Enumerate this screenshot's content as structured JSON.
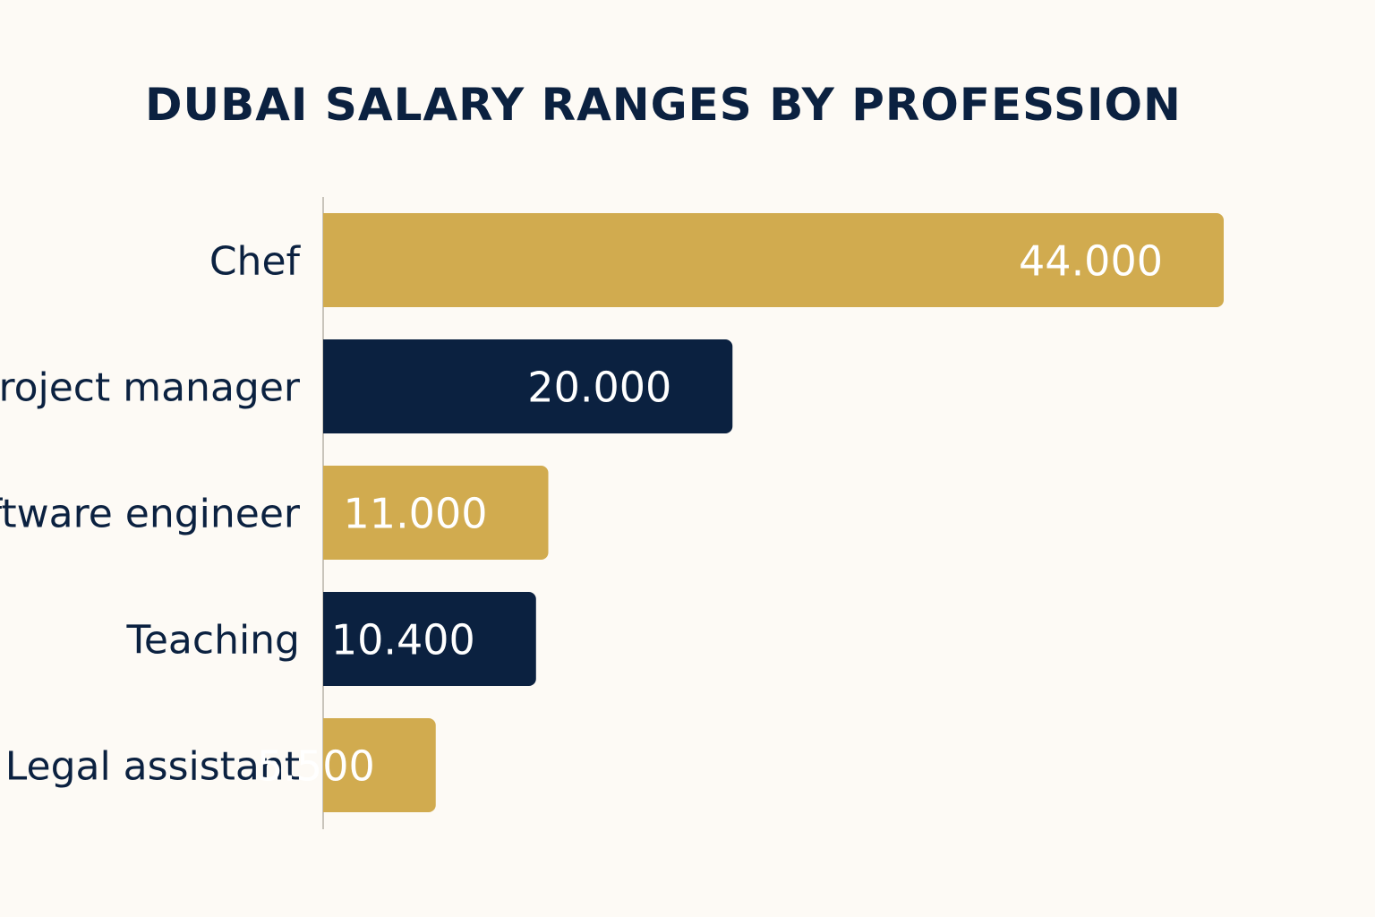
{
  "chart_data": {
    "type": "bar",
    "orientation": "horizontal",
    "title": "DUBAI SALARY RANGES BY PROFESSION",
    "categories": [
      "Chef",
      "Project manager",
      "Software engineer",
      "Teaching",
      "Legal assistant"
    ],
    "values": [
      44000,
      20000,
      11000,
      10400,
      5500
    ],
    "value_labels": [
      "44.000",
      "20.000",
      "11.000",
      "10.400",
      "5.500"
    ],
    "colors": [
      "#d1ab4f",
      "#0b2140",
      "#d1ab4f",
      "#0b2140",
      "#d1ab4f"
    ],
    "xlabel": "",
    "ylabel": "",
    "legend": "none",
    "grid": false
  }
}
